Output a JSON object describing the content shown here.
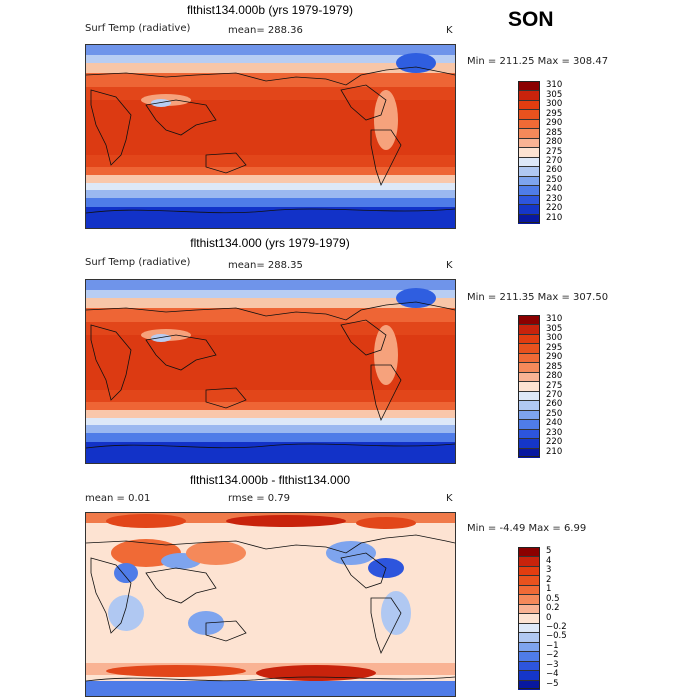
{
  "season": "SON",
  "panels": [
    {
      "title": "flthist134.000b (yrs 1979-1979)",
      "variable": "Surf Temp (radiative)",
      "stat_text": "mean= 288.36",
      "units": "K",
      "minmax": "Min = 211.25 Max = 308.47",
      "levels": [
        "310",
        "305",
        "300",
        "295",
        "290",
        "285",
        "280",
        "275",
        "270",
        "260",
        "250",
        "240",
        "230",
        "220",
        "210"
      ],
      "colors": [
        "#8b0000",
        "#c8230c",
        "#e23d10",
        "#e8521e",
        "#f06a36",
        "#f5895a",
        "#f9b394",
        "#fde3d2",
        "#dde8f8",
        "#b0c8f2",
        "#7ea4ee",
        "#4f7ce8",
        "#2d55dd",
        "#1536c8",
        "#0818a0"
      ]
    },
    {
      "title": "flthist134.000 (yrs 1979-1979)",
      "variable": "Surf Temp (radiative)",
      "stat_text": "mean= 288.35",
      "units": "K",
      "minmax": "Min = 211.35 Max = 307.50",
      "levels": [
        "310",
        "305",
        "300",
        "295",
        "290",
        "285",
        "280",
        "275",
        "270",
        "260",
        "250",
        "240",
        "230",
        "220",
        "210"
      ],
      "colors": [
        "#8b0000",
        "#c8230c",
        "#e23d10",
        "#e8521e",
        "#f06a36",
        "#f5895a",
        "#f9b394",
        "#fde3d2",
        "#dde8f8",
        "#b0c8f2",
        "#7ea4ee",
        "#4f7ce8",
        "#2d55dd",
        "#1536c8",
        "#0818a0"
      ]
    },
    {
      "title": "flthist134.000b - flthist134.000",
      "stat_text": "mean =    0.01",
      "rmse_text": "rmse =    0.79",
      "units": "K",
      "minmax": "Min =  -4.49 Max =   6.99",
      "levels": [
        "5",
        "4",
        "3",
        "2",
        "1",
        "0.5",
        "0.2",
        "0",
        "−0.2",
        "−0.5",
        "−1",
        "−2",
        "−3",
        "−4",
        "−5"
      ],
      "colors": [
        "#8b0000",
        "#c8230c",
        "#e23d10",
        "#e8521e",
        "#f06a36",
        "#f5895a",
        "#f9b394",
        "#fde3d2",
        "#dde8f8",
        "#b0c8f2",
        "#7ea4ee",
        "#4f7ce8",
        "#2d55dd",
        "#1536c8",
        "#0818a0"
      ]
    }
  ]
}
